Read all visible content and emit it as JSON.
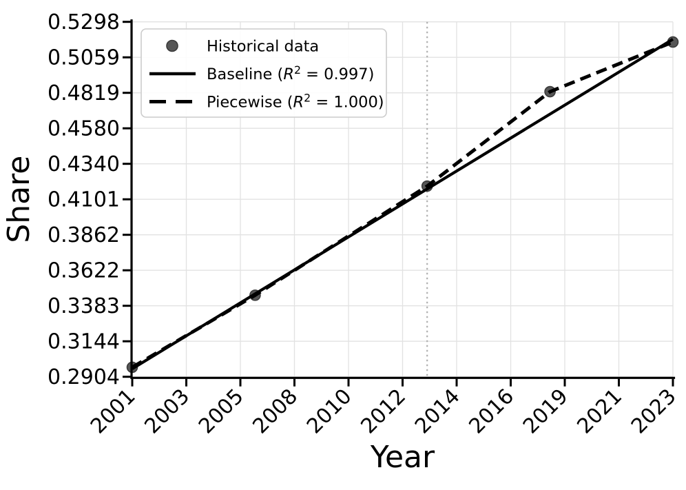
{
  "figure": {
    "background": "#ffffff",
    "accent_black": "#000000",
    "grid_color": "#e2e2e2",
    "breakline_color": "#b0b0b0",
    "point_fill": "#4d4d4d",
    "point_edge": "#3a3a3a"
  },
  "chart_data": {
    "type": "line",
    "title": "",
    "xlabel": "Year",
    "ylabel": "Share",
    "xlim": [
      2001,
      2023
    ],
    "ylim": [
      0.2904,
      0.5298
    ],
    "grid": true,
    "x_tick_labels": [
      "2001",
      "2003",
      "2005",
      "2008",
      "2010",
      "2012",
      "2014",
      "2016",
      "2019",
      "2021",
      "2023"
    ],
    "y_tick_labels": [
      "0.2904",
      "0.3144",
      "0.3383",
      "0.3622",
      "0.3862",
      "0.4101",
      "0.4340",
      "0.4580",
      "0.4819",
      "0.5059",
      "0.5298"
    ],
    "breakpoint_line": {
      "x": 2013,
      "style": "dotted"
    },
    "series": [
      {
        "name": "Historical data",
        "type": "scatter",
        "x": [
          2001,
          2006,
          2013,
          2018,
          2023
        ],
        "y": [
          0.2968,
          0.3454,
          0.419,
          0.4827,
          0.5162
        ]
      },
      {
        "name": "Baseline (R² = 0.997)",
        "type": "line",
        "style": "solid",
        "x": [
          2001,
          2023
        ],
        "y": [
          0.2958,
          0.5181
        ]
      },
      {
        "name": "Piecewise (R² = 1.000)",
        "type": "line",
        "style": "dashed",
        "x": [
          2001,
          2006,
          2013,
          2018,
          2023
        ],
        "y": [
          0.2968,
          0.3454,
          0.419,
          0.4827,
          0.5162
        ]
      }
    ],
    "legend": {
      "position": "upper left",
      "items": [
        {
          "marker": "dot",
          "label": "Historical data"
        },
        {
          "marker": "solid-line",
          "label": "Baseline (R² = 0.997)"
        },
        {
          "marker": "dashed-line",
          "label": "Piecewise (R² = 1.000)"
        }
      ]
    }
  }
}
